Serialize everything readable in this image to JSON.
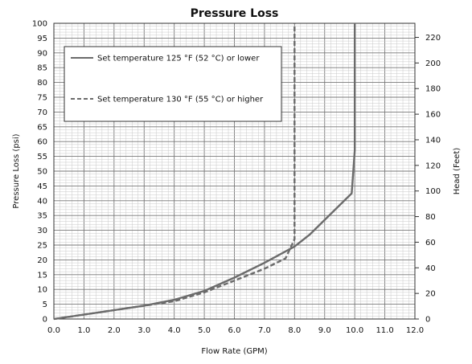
{
  "chart_data": {
    "type": "line",
    "title": "Pressure Loss",
    "xlabel": "Flow Rate (GPM)",
    "ylabel": "Pressure Loss (psi)",
    "y2label": "Head (Feet)",
    "xlim": [
      0,
      12
    ],
    "ylim": [
      0,
      100
    ],
    "y2lim": [
      0,
      231
    ],
    "x_ticks": [
      "0.0",
      "1.0",
      "2.0",
      "3.0",
      "4.0",
      "5.0",
      "6.0",
      "7.0",
      "8.0",
      "9.0",
      "10.0",
      "11.0",
      "12.0"
    ],
    "y_ticks": [
      "0",
      "5",
      "10",
      "15",
      "20",
      "25",
      "30",
      "35",
      "40",
      "45",
      "50",
      "55",
      "60",
      "65",
      "70",
      "75",
      "80",
      "85",
      "90",
      "95",
      "100"
    ],
    "y2_ticks": [
      "0",
      "20",
      "40",
      "60",
      "80",
      "100",
      "120",
      "140",
      "160",
      "180",
      "200",
      "220"
    ],
    "grid": true,
    "legend_position": "top-left",
    "series": [
      {
        "name": "Set temperature 125 °F (52 °C) or lower",
        "style": "solid",
        "color": "#6b6b6b",
        "points": [
          [
            0,
            0
          ],
          [
            1,
            1.5
          ],
          [
            2,
            3
          ],
          [
            3,
            4.5
          ],
          [
            4,
            6.5
          ],
          [
            5,
            9.5
          ],
          [
            6,
            14
          ],
          [
            7,
            19
          ],
          [
            8,
            24.5
          ],
          [
            8.5,
            28.5
          ],
          [
            9.9,
            42.5
          ],
          [
            10.0,
            57
          ],
          [
            10.0,
            100
          ]
        ]
      },
      {
        "name": "Set temperature 130 °F (55 °C) or higher",
        "style": "dashed",
        "color": "#6b6b6b",
        "points": [
          [
            0,
            0
          ],
          [
            1,
            1.5
          ],
          [
            2,
            3
          ],
          [
            3,
            4.5
          ],
          [
            4,
            6
          ],
          [
            5,
            9
          ],
          [
            6,
            13
          ],
          [
            7,
            17
          ],
          [
            7.7,
            20.5
          ],
          [
            8.0,
            27
          ],
          [
            8.0,
            100
          ]
        ]
      }
    ]
  }
}
